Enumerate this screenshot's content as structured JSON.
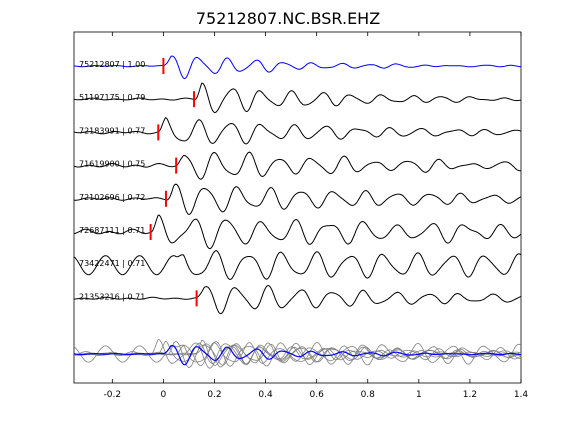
{
  "chart_data": {
    "type": "line",
    "title": "75212807.NC.BSR.EHZ",
    "xlabel": "",
    "ylabel": "",
    "xlim": [
      -0.35,
      1.4
    ],
    "x_ticks": [
      "-0.2",
      "0",
      "0.2",
      "0.4",
      "0.6",
      "0.8",
      "1",
      "1.2",
      "1.4"
    ],
    "x_tick_values": [
      -0.2,
      0,
      0.2,
      0.4,
      0.6,
      0.8,
      1.0,
      1.2,
      1.4
    ],
    "grid": false,
    "colors": {
      "reference_trace": "#0000ff",
      "trace": "#000000",
      "pick": "#ff0000",
      "stack_trace": "#808080"
    },
    "series": [
      {
        "name": "75212807 | 1.00",
        "pick_time": 0.0,
        "amplitude": 0.9,
        "freq": 9.0,
        "decay": 2.5,
        "pre_noise": 0.05
      },
      {
        "name": "51197175 | 0.79",
        "pick_time": 0.12,
        "amplitude": 1.0,
        "freq": 8.5,
        "decay": 1.8,
        "pre_noise": 0.08
      },
      {
        "name": "72183991 | 0.77",
        "pick_time": -0.02,
        "amplitude": 1.0,
        "freq": 8.0,
        "decay": 1.4,
        "pre_noise": 0.1
      },
      {
        "name": "71619900 | 0.75",
        "pick_time": 0.05,
        "amplitude": 1.0,
        "freq": 8.0,
        "decay": 1.2,
        "pre_noise": 0.15
      },
      {
        "name": "72102696 | 0.72",
        "pick_time": 0.01,
        "amplitude": 1.0,
        "freq": 8.0,
        "decay": 1.0,
        "pre_noise": 0.1
      },
      {
        "name": "72687111 | 0.71",
        "pick_time": -0.05,
        "amplitude": 1.0,
        "freq": 7.5,
        "decay": 0.6,
        "pre_noise": 0.2
      },
      {
        "name": "73422471 | 0.71",
        "pick_time": null,
        "amplitude": 1.0,
        "freq": 7.5,
        "decay": 0.4,
        "pre_noise": 0.8
      },
      {
        "name": "21353216 | 0.71",
        "pick_time": 0.13,
        "amplitude": 1.0,
        "freq": 8.0,
        "decay": 1.2,
        "pre_noise": 0.08
      }
    ]
  }
}
